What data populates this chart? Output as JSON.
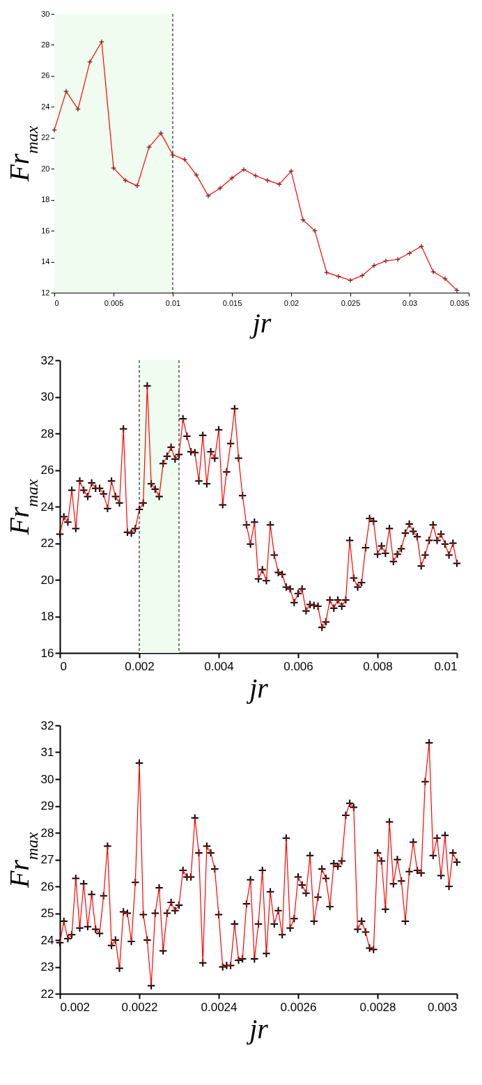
{
  "chart_data": [
    {
      "type": "line",
      "xlabel": "jr",
      "ylabel": "Fr$_{max}$",
      "marker": "cross",
      "line_style": "solid",
      "xlim": [
        0,
        0.035
      ],
      "xticks": [
        0,
        0.005,
        0.01,
        0.015,
        0.02,
        0.025,
        0.03,
        0.035
      ],
      "ylim": [
        12,
        30
      ],
      "yticks": [
        12,
        14,
        16,
        18,
        20,
        22,
        24,
        26,
        28,
        30
      ],
      "bands": [
        {
          "axis": "x",
          "from": 0,
          "to": 0.01,
          "color": "#f0fcf0"
        }
      ],
      "ref_lines": [
        {
          "axis": "x",
          "value": 0.01,
          "color": "#000000",
          "line_style": "dashed"
        }
      ],
      "x": [
        0,
        0.001,
        0.002,
        0.003,
        0.004,
        0.005,
        0.006,
        0.007,
        0.008,
        0.009,
        0.01,
        0.011,
        0.012,
        0.013,
        0.014,
        0.015,
        0.016,
        0.017,
        0.018,
        0.019,
        0.02,
        0.021,
        0.022,
        0.023,
        0.024,
        0.025,
        0.026,
        0.027,
        0.028,
        0.029,
        0.03,
        0.031,
        0.032,
        0.033,
        0.034
      ],
      "series": [
        {
          "color": "#ff0000",
          "values": [
            22.5,
            25.0,
            23.85,
            26.9,
            28.2,
            20.05,
            19.25,
            18.9,
            21.4,
            22.3,
            20.9,
            20.6,
            19.6,
            18.25,
            18.75,
            19.4,
            19.95,
            19.55,
            19.25,
            19.0,
            19.85,
            16.7,
            16.0,
            13.3,
            13.05,
            12.8,
            13.1,
            13.75,
            14.05,
            14.15,
            14.55,
            15.0,
            13.35,
            12.9,
            12.15
          ]
        }
      ]
    },
    {
      "type": "line",
      "xlabel": "jr",
      "ylabel": "Fr$_{max}$",
      "marker": "cross",
      "line_style": "solid",
      "xlim": [
        0,
        0.01
      ],
      "xticks": [
        0,
        0.002,
        0.004,
        0.006,
        0.008,
        0.01
      ],
      "ylim": [
        16,
        32
      ],
      "yticks": [
        16,
        18,
        20,
        22,
        24,
        26,
        28,
        30,
        32
      ],
      "bands": [
        {
          "axis": "x",
          "from": 0.002,
          "to": 0.003,
          "color": "#f0fcf0"
        }
      ],
      "ref_lines": [
        {
          "axis": "x",
          "value": 0.002,
          "color": "#000000",
          "line_style": "dashed"
        },
        {
          "axis": "x",
          "value": 0.003,
          "color": "#000000",
          "line_style": "dashed"
        }
      ],
      "x": [
        0,
        0.0001,
        0.0002,
        0.0003,
        0.0004,
        0.0005,
        0.0006,
        0.0007,
        0.0008,
        0.0009,
        0.001,
        0.0011,
        0.0012,
        0.0013,
        0.0014,
        0.0015,
        0.0016,
        0.0017,
        0.0018,
        0.0019,
        0.002,
        0.0021,
        0.0022,
        0.0023,
        0.0024,
        0.0025,
        0.0026,
        0.0027,
        0.0028,
        0.0029,
        0.003,
        0.0031,
        0.0032,
        0.0033,
        0.0034,
        0.0035,
        0.0036,
        0.0037,
        0.0038,
        0.0039,
        0.004,
        0.0041,
        0.0042,
        0.0043,
        0.0044,
        0.0045,
        0.0046,
        0.0047,
        0.0048,
        0.0049,
        0.005,
        0.0051,
        0.0052,
        0.0053,
        0.0054,
        0.0055,
        0.0056,
        0.0057,
        0.0058,
        0.0059,
        0.006,
        0.0061,
        0.0062,
        0.0063,
        0.0064,
        0.0065,
        0.0066,
        0.0067,
        0.0068,
        0.0069,
        0.007,
        0.0071,
        0.0072,
        0.0073,
        0.0074,
        0.0075,
        0.0076,
        0.0077,
        0.0078,
        0.0079,
        0.008,
        0.0081,
        0.0082,
        0.0083,
        0.0084,
        0.0085,
        0.0086,
        0.0087,
        0.0088,
        0.0089,
        0.009,
        0.0091,
        0.0092,
        0.0093,
        0.0094,
        0.0095,
        0.0096,
        0.0097,
        0.0098,
        0.0099,
        0.01
      ],
      "series": [
        {
          "color": "#ff0000",
          "values": [
            22.5,
            23.45,
            23.15,
            24.9,
            22.8,
            25.4,
            24.9,
            24.55,
            25.3,
            25.0,
            25.0,
            24.7,
            23.9,
            25.4,
            24.55,
            24.2,
            28.25,
            22.6,
            22.55,
            22.8,
            23.85,
            24.2,
            30.6,
            25.25,
            24.95,
            24.55,
            26.35,
            26.75,
            27.25,
            26.6,
            26.85,
            28.8,
            27.85,
            27.0,
            26.95,
            25.4,
            27.9,
            25.25,
            27.0,
            26.65,
            28.2,
            24.1,
            25.9,
            27.45,
            29.35,
            26.65,
            24.6,
            23.0,
            21.95,
            23.15,
            20.05,
            20.55,
            19.95,
            23.0,
            21.35,
            20.4,
            20.3,
            19.6,
            19.5,
            18.75,
            19.25,
            19.5,
            18.3,
            18.65,
            18.6,
            18.55,
            17.4,
            17.7,
            18.9,
            18.45,
            18.9,
            18.55,
            18.9,
            22.15,
            20.1,
            19.6,
            19.85,
            21.75,
            23.35,
            23.2,
            21.4,
            21.85,
            21.45,
            22.8,
            21.0,
            21.4,
            21.7,
            22.55,
            23.05,
            22.65,
            22.35,
            20.75,
            21.35,
            22.15,
            23.0,
            22.15,
            22.5,
            21.95,
            21.35,
            22.0,
            20.9
          ]
        }
      ]
    },
    {
      "type": "line",
      "xlabel": "jr",
      "ylabel": "Fr$_{max}$",
      "marker": "cross",
      "line_style": "solid",
      "xlim": [
        0.002,
        0.003
      ],
      "xticks": [
        0.002,
        0.0022,
        0.0024,
        0.0026,
        0.0028,
        0.003
      ],
      "ylim": [
        22,
        32
      ],
      "yticks": [
        22,
        23,
        24,
        25,
        26,
        27,
        28,
        29,
        30,
        31,
        32
      ],
      "x": [
        0.002,
        0.00201,
        0.00202,
        0.00203,
        0.00204,
        0.00205,
        0.00206,
        0.00207,
        0.00208,
        0.00209,
        0.0021,
        0.00211,
        0.00212,
        0.00213,
        0.00214,
        0.00215,
        0.00216,
        0.00217,
        0.00218,
        0.00219,
        0.0022,
        0.00221,
        0.00222,
        0.00223,
        0.00224,
        0.00225,
        0.00226,
        0.00227,
        0.00228,
        0.00229,
        0.0023,
        0.00231,
        0.00232,
        0.00233,
        0.00234,
        0.00235,
        0.00236,
        0.00237,
        0.00238,
        0.00239,
        0.0024,
        0.00241,
        0.00242,
        0.00243,
        0.00244,
        0.00245,
        0.00246,
        0.00247,
        0.00248,
        0.00249,
        0.0025,
        0.00251,
        0.00252,
        0.00253,
        0.00254,
        0.00255,
        0.00256,
        0.00257,
        0.00258,
        0.00259,
        0.0026,
        0.00261,
        0.00262,
        0.00263,
        0.00264,
        0.00265,
        0.00266,
        0.00267,
        0.00268,
        0.00269,
        0.0027,
        0.00271,
        0.00272,
        0.00273,
        0.00274,
        0.00275,
        0.00276,
        0.00277,
        0.00278,
        0.00279,
        0.0028,
        0.00281,
        0.00282,
        0.00283,
        0.00284,
        0.00285,
        0.00286,
        0.00287,
        0.00288,
        0.00289,
        0.0029,
        0.00291,
        0.00292,
        0.00293,
        0.00294,
        0.00295,
        0.00296,
        0.00297,
        0.00298,
        0.00299,
        0.003
      ],
      "series": [
        {
          "color": "#ff0000",
          "values": [
            23.9,
            24.7,
            24.05,
            24.2,
            26.3,
            24.45,
            26.1,
            24.5,
            25.7,
            24.4,
            24.25,
            25.65,
            27.5,
            23.8,
            24.0,
            22.95,
            25.05,
            25.0,
            23.95,
            26.15,
            30.6,
            24.95,
            24.0,
            22.3,
            25.0,
            25.95,
            23.6,
            25.0,
            25.4,
            25.1,
            25.3,
            26.6,
            26.35,
            26.35,
            28.55,
            27.25,
            23.15,
            27.5,
            27.25,
            26.65,
            24.95,
            23.0,
            23.05,
            23.05,
            24.6,
            23.25,
            23.3,
            25.35,
            26.25,
            23.3,
            24.6,
            26.6,
            23.5,
            25.8,
            24.6,
            25.1,
            24.2,
            27.8,
            24.45,
            24.8,
            26.35,
            26.05,
            25.75,
            27.15,
            24.7,
            25.6,
            26.65,
            26.3,
            25.25,
            26.85,
            26.75,
            26.95,
            28.65,
            29.1,
            28.95,
            24.4,
            24.7,
            24.3,
            23.7,
            23.65,
            27.25,
            26.95,
            25.15,
            28.4,
            26.1,
            27.0,
            26.2,
            24.7,
            26.55,
            27.65,
            26.6,
            26.5,
            29.9,
            31.35,
            27.15,
            27.8,
            26.4,
            27.9,
            26.0,
            27.25,
            26.9
          ]
        }
      ]
    }
  ]
}
